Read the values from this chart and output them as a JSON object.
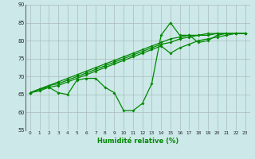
{
  "xlabel": "Humidité relative (%)",
  "bg_color": "#cce8e8",
  "line_color": "#008800",
  "grid_color": "#aabbbb",
  "xlim": [
    -0.5,
    23.5
  ],
  "ylim": [
    55,
    90
  ],
  "xticks": [
    0,
    1,
    2,
    3,
    4,
    5,
    6,
    7,
    8,
    9,
    10,
    11,
    12,
    13,
    14,
    15,
    16,
    17,
    18,
    19,
    20,
    21,
    22,
    23
  ],
  "yticks": [
    55,
    60,
    65,
    70,
    75,
    80,
    85,
    90
  ],
  "series": [
    [
      65.5,
      66.5,
      67.0,
      65.5,
      65.0,
      69.0,
      69.5,
      69.5,
      67.0,
      65.5,
      60.5,
      60.5,
      62.5,
      68.0,
      81.5,
      85.0,
      81.5,
      81.5,
      79.5,
      80.0,
      81.5,
      82.0,
      82.0,
      82.0
    ],
    [
      65.5,
      66.5,
      67.5,
      68.5,
      69.5,
      70.5,
      71.5,
      72.5,
      73.5,
      74.5,
      75.5,
      76.5,
      77.5,
      78.5,
      79.5,
      80.5,
      81.0,
      81.5,
      81.5,
      82.0,
      82.0,
      82.0,
      82.0,
      82.0
    ],
    [
      65.5,
      66.0,
      67.0,
      67.5,
      68.5,
      69.5,
      70.5,
      71.5,
      72.5,
      73.5,
      74.5,
      75.5,
      76.5,
      77.5,
      78.5,
      76.5,
      78.0,
      79.0,
      80.0,
      80.5,
      81.0,
      81.5,
      82.0,
      82.0
    ],
    [
      65.5,
      66.5,
      67.5,
      68.0,
      69.0,
      70.0,
      71.0,
      72.0,
      73.0,
      74.0,
      75.0,
      76.0,
      77.0,
      78.0,
      79.0,
      79.5,
      80.5,
      81.0,
      81.5,
      81.5,
      82.0,
      82.0,
      82.0,
      82.0
    ]
  ]
}
